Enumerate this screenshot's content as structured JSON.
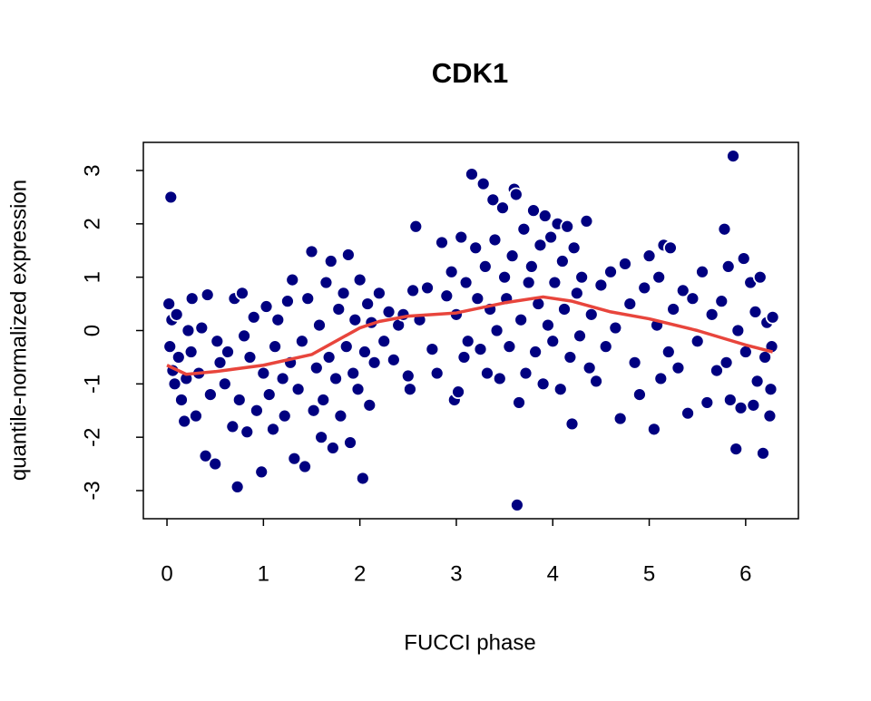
{
  "chart_data": {
    "type": "scatter",
    "title": "CDK1",
    "xlabel": "FUCCI phase",
    "ylabel": "quantile-normalized expression",
    "xlim": [
      -0.245,
      6.547
    ],
    "ylim": [
      -3.527,
      3.527
    ],
    "xticks": [
      0,
      1,
      2,
      3,
      4,
      5,
      6
    ],
    "yticks": [
      -3,
      -2,
      -1,
      0,
      1,
      2,
      3
    ],
    "series": [
      {
        "type": "scatter",
        "color": "#000080",
        "x": [
          0.04,
          0.02,
          0.05,
          0.03,
          0.06,
          0.08,
          0.1,
          0.12,
          0.15,
          0.18,
          0.2,
          0.22,
          0.25,
          0.26,
          0.3,
          0.33,
          0.36,
          0.4,
          0.42,
          0.45,
          0.5,
          0.52,
          0.55,
          0.6,
          0.63,
          0.68,
          0.7,
          0.73,
          0.75,
          0.78,
          0.8,
          0.83,
          0.86,
          0.9,
          0.93,
          0.98,
          1.0,
          1.03,
          1.06,
          1.1,
          1.12,
          1.15,
          1.2,
          1.22,
          1.25,
          1.28,
          1.3,
          1.32,
          1.36,
          1.4,
          1.43,
          1.46,
          1.5,
          1.52,
          1.55,
          1.58,
          1.6,
          1.62,
          1.65,
          1.68,
          1.7,
          1.72,
          1.75,
          1.78,
          1.8,
          1.83,
          1.86,
          1.88,
          1.9,
          1.93,
          1.95,
          1.98,
          2.0,
          2.03,
          2.05,
          2.08,
          2.1,
          2.12,
          2.15,
          2.2,
          2.25,
          2.3,
          2.35,
          2.4,
          2.45,
          2.5,
          2.52,
          2.55,
          2.58,
          2.62,
          2.7,
          2.75,
          2.8,
          2.85,
          2.9,
          2.95,
          2.98,
          3.0,
          3.02,
          3.05,
          3.08,
          3.1,
          3.12,
          3.16,
          3.2,
          3.22,
          3.25,
          3.28,
          3.3,
          3.32,
          3.35,
          3.38,
          3.4,
          3.42,
          3.45,
          3.48,
          3.5,
          3.52,
          3.55,
          3.58,
          3.6,
          3.62,
          3.63,
          3.65,
          3.67,
          3.7,
          3.72,
          3.75,
          3.78,
          3.8,
          3.82,
          3.85,
          3.87,
          3.9,
          3.92,
          3.95,
          3.98,
          4.0,
          4.02,
          4.05,
          4.08,
          4.1,
          4.12,
          4.15,
          4.18,
          4.2,
          4.22,
          4.25,
          4.28,
          4.3,
          4.35,
          4.38,
          4.4,
          4.45,
          4.5,
          4.55,
          4.6,
          4.65,
          4.7,
          4.75,
          4.8,
          4.85,
          4.9,
          4.95,
          5.0,
          5.05,
          5.08,
          5.1,
          5.12,
          5.15,
          5.2,
          5.22,
          5.25,
          5.3,
          5.35,
          5.4,
          5.45,
          5.5,
          5.55,
          5.6,
          5.65,
          5.7,
          5.75,
          5.78,
          5.8,
          5.82,
          5.84,
          5.87,
          5.9,
          5.92,
          5.95,
          5.98,
          6.0,
          6.05,
          6.08,
          6.1,
          6.12,
          6.15,
          6.18,
          6.2,
          6.22,
          6.25,
          6.27,
          6.28,
          6.26
        ],
        "values": [
          2.5,
          0.5,
          0.2,
          -0.3,
          -0.75,
          -1.0,
          0.3,
          -0.5,
          -1.3,
          -1.7,
          -0.9,
          0.0,
          -0.4,
          0.6,
          -1.6,
          -0.8,
          0.05,
          -2.35,
          0.67,
          -1.2,
          -2.5,
          -0.2,
          -0.6,
          -1.0,
          -0.4,
          -1.8,
          0.6,
          -2.93,
          -1.3,
          0.7,
          -0.1,
          -1.9,
          -0.5,
          0.25,
          -1.5,
          -2.65,
          -0.8,
          0.45,
          -1.2,
          -1.85,
          -0.3,
          0.2,
          -0.9,
          -1.6,
          0.55,
          -0.6,
          0.95,
          -2.4,
          -1.1,
          -0.2,
          -2.55,
          0.6,
          1.48,
          -1.5,
          -0.7,
          0.1,
          -2.0,
          -1.3,
          0.9,
          -0.5,
          1.3,
          -2.2,
          -0.9,
          0.4,
          -1.6,
          0.7,
          -0.3,
          1.42,
          -2.1,
          -0.8,
          0.2,
          -1.1,
          0.95,
          -2.77,
          -0.4,
          0.5,
          -1.4,
          0.15,
          -0.6,
          0.7,
          -0.2,
          0.35,
          -0.55,
          0.1,
          0.3,
          -0.85,
          -1.1,
          0.75,
          1.95,
          0.2,
          0.8,
          -0.35,
          -0.8,
          1.65,
          0.65,
          1.1,
          -1.3,
          0.3,
          -1.15,
          1.75,
          -0.5,
          0.9,
          -0.2,
          2.93,
          1.55,
          0.6,
          -0.35,
          2.75,
          1.2,
          -0.8,
          0.4,
          2.45,
          1.7,
          0.0,
          -0.9,
          2.3,
          1.0,
          0.6,
          -0.3,
          1.4,
          2.65,
          2.55,
          -3.27,
          -1.35,
          0.2,
          1.9,
          -0.8,
          0.9,
          1.2,
          2.25,
          -0.4,
          0.5,
          1.6,
          -1.0,
          2.15,
          0.1,
          1.75,
          -0.2,
          0.9,
          2.0,
          -1.1,
          1.3,
          0.4,
          1.95,
          -0.5,
          -1.75,
          1.55,
          0.7,
          -0.1,
          1.0,
          2.05,
          -0.7,
          0.3,
          -0.95,
          0.85,
          -0.3,
          1.1,
          0.05,
          -1.65,
          1.25,
          0.5,
          -0.6,
          -1.2,
          0.8,
          1.4,
          -1.85,
          0.1,
          1.0,
          -0.9,
          1.6,
          -0.4,
          1.55,
          0.4,
          -0.7,
          0.75,
          -1.55,
          0.6,
          -0.2,
          1.1,
          -1.35,
          0.3,
          -0.75,
          0.55,
          1.9,
          -0.6,
          1.2,
          -1.3,
          3.27,
          -2.22,
          0.0,
          -1.45,
          1.35,
          -0.4,
          0.9,
          -1.4,
          0.35,
          -0.95,
          1.0,
          -2.3,
          -0.5,
          0.15,
          -1.6,
          -0.3,
          0.25,
          -1.1
        ]
      },
      {
        "type": "line",
        "color": "#e8453c",
        "x": [
          0,
          0.2,
          0.5,
          1,
          1.5,
          2,
          2.2,
          2.5,
          3,
          3.5,
          3.9,
          4.2,
          4.6,
          5,
          5.5,
          6,
          6.28
        ],
        "values": [
          -0.65,
          -0.82,
          -0.77,
          -0.65,
          -0.45,
          0.05,
          0.17,
          0.27,
          0.33,
          0.52,
          0.63,
          0.55,
          0.35,
          0.22,
          0.0,
          -0.27,
          -0.4
        ]
      }
    ]
  }
}
